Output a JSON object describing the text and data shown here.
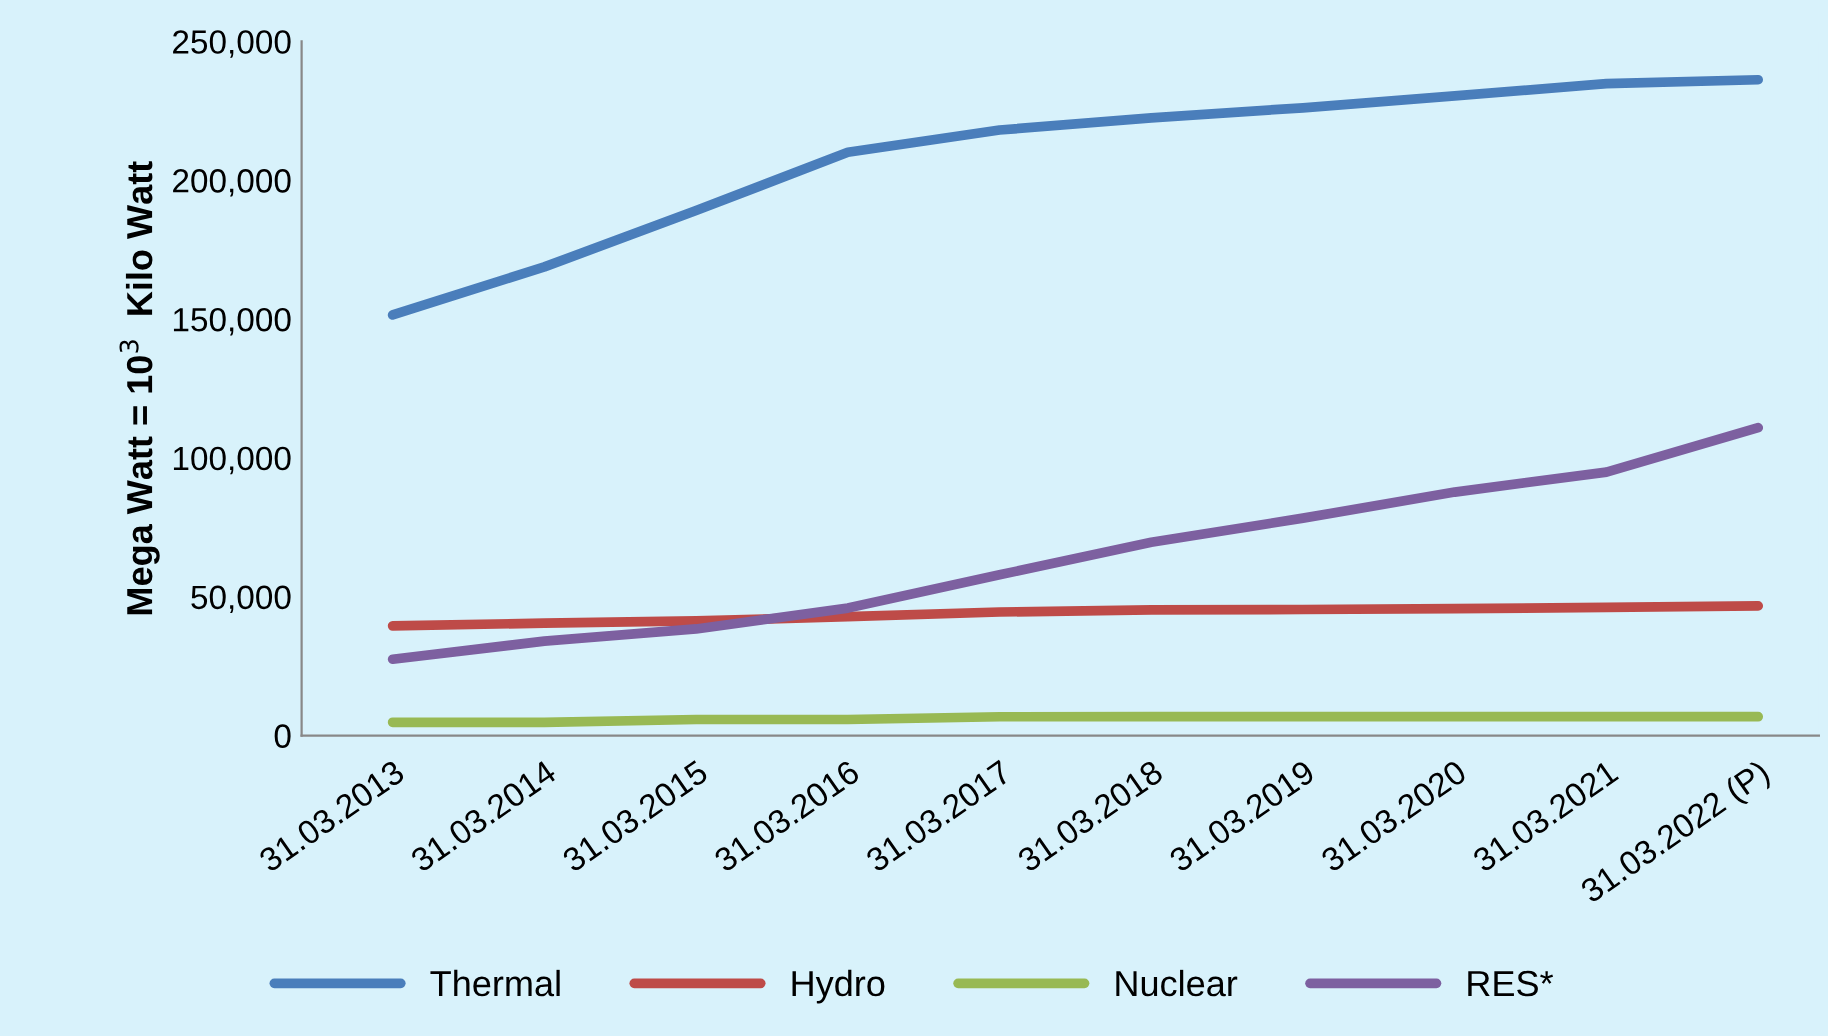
{
  "chart_data": {
    "type": "line",
    "ylabel": "Mega Watt = 10$^{3}$  Kilo Watt",
    "categories": [
      "31.03.2013",
      "31.03.2014",
      "31.03.2015",
      "31.03.2016",
      "31.03.2017",
      "31.03.2018",
      "31.03.2019",
      "31.03.2020",
      "31.03.2021",
      "31.03.2022 (P)"
    ],
    "series": [
      {
        "name": "Thermal",
        "color": "#4a7ebb",
        "values": [
          151500,
          168800,
          189100,
          210100,
          218100,
          222500,
          226100,
          230400,
          234800,
          236200
        ]
      },
      {
        "name": "Hydro",
        "color": "#be4b48",
        "values": [
          39500,
          40500,
          41300,
          42800,
          44500,
          45300,
          45400,
          45700,
          46200,
          46700
        ]
      },
      {
        "name": "Nuclear",
        "color": "#98b954",
        "values": [
          4780,
          4780,
          5780,
          5780,
          6780,
          6780,
          6780,
          6780,
          6780,
          6780
        ]
      },
      {
        "name": "RES*",
        "color": "#7d60a0",
        "values": [
          27500,
          34000,
          38400,
          45900,
          57900,
          69600,
          78300,
          87700,
          94900,
          110900
        ]
      }
    ],
    "ylim": [
      0,
      250000
    ],
    "yticks": [
      {
        "value": 0,
        "label": "0"
      },
      {
        "value": 50000,
        "label": "50,000"
      },
      {
        "value": 100000,
        "label": "100,000"
      },
      {
        "value": 150000,
        "label": "150,000"
      },
      {
        "value": 200000,
        "label": "200,000"
      },
      {
        "value": 250000,
        "label": "250,000"
      }
    ],
    "grid": false,
    "legend": "bottom",
    "marker": "none",
    "line_style": "solid"
  }
}
